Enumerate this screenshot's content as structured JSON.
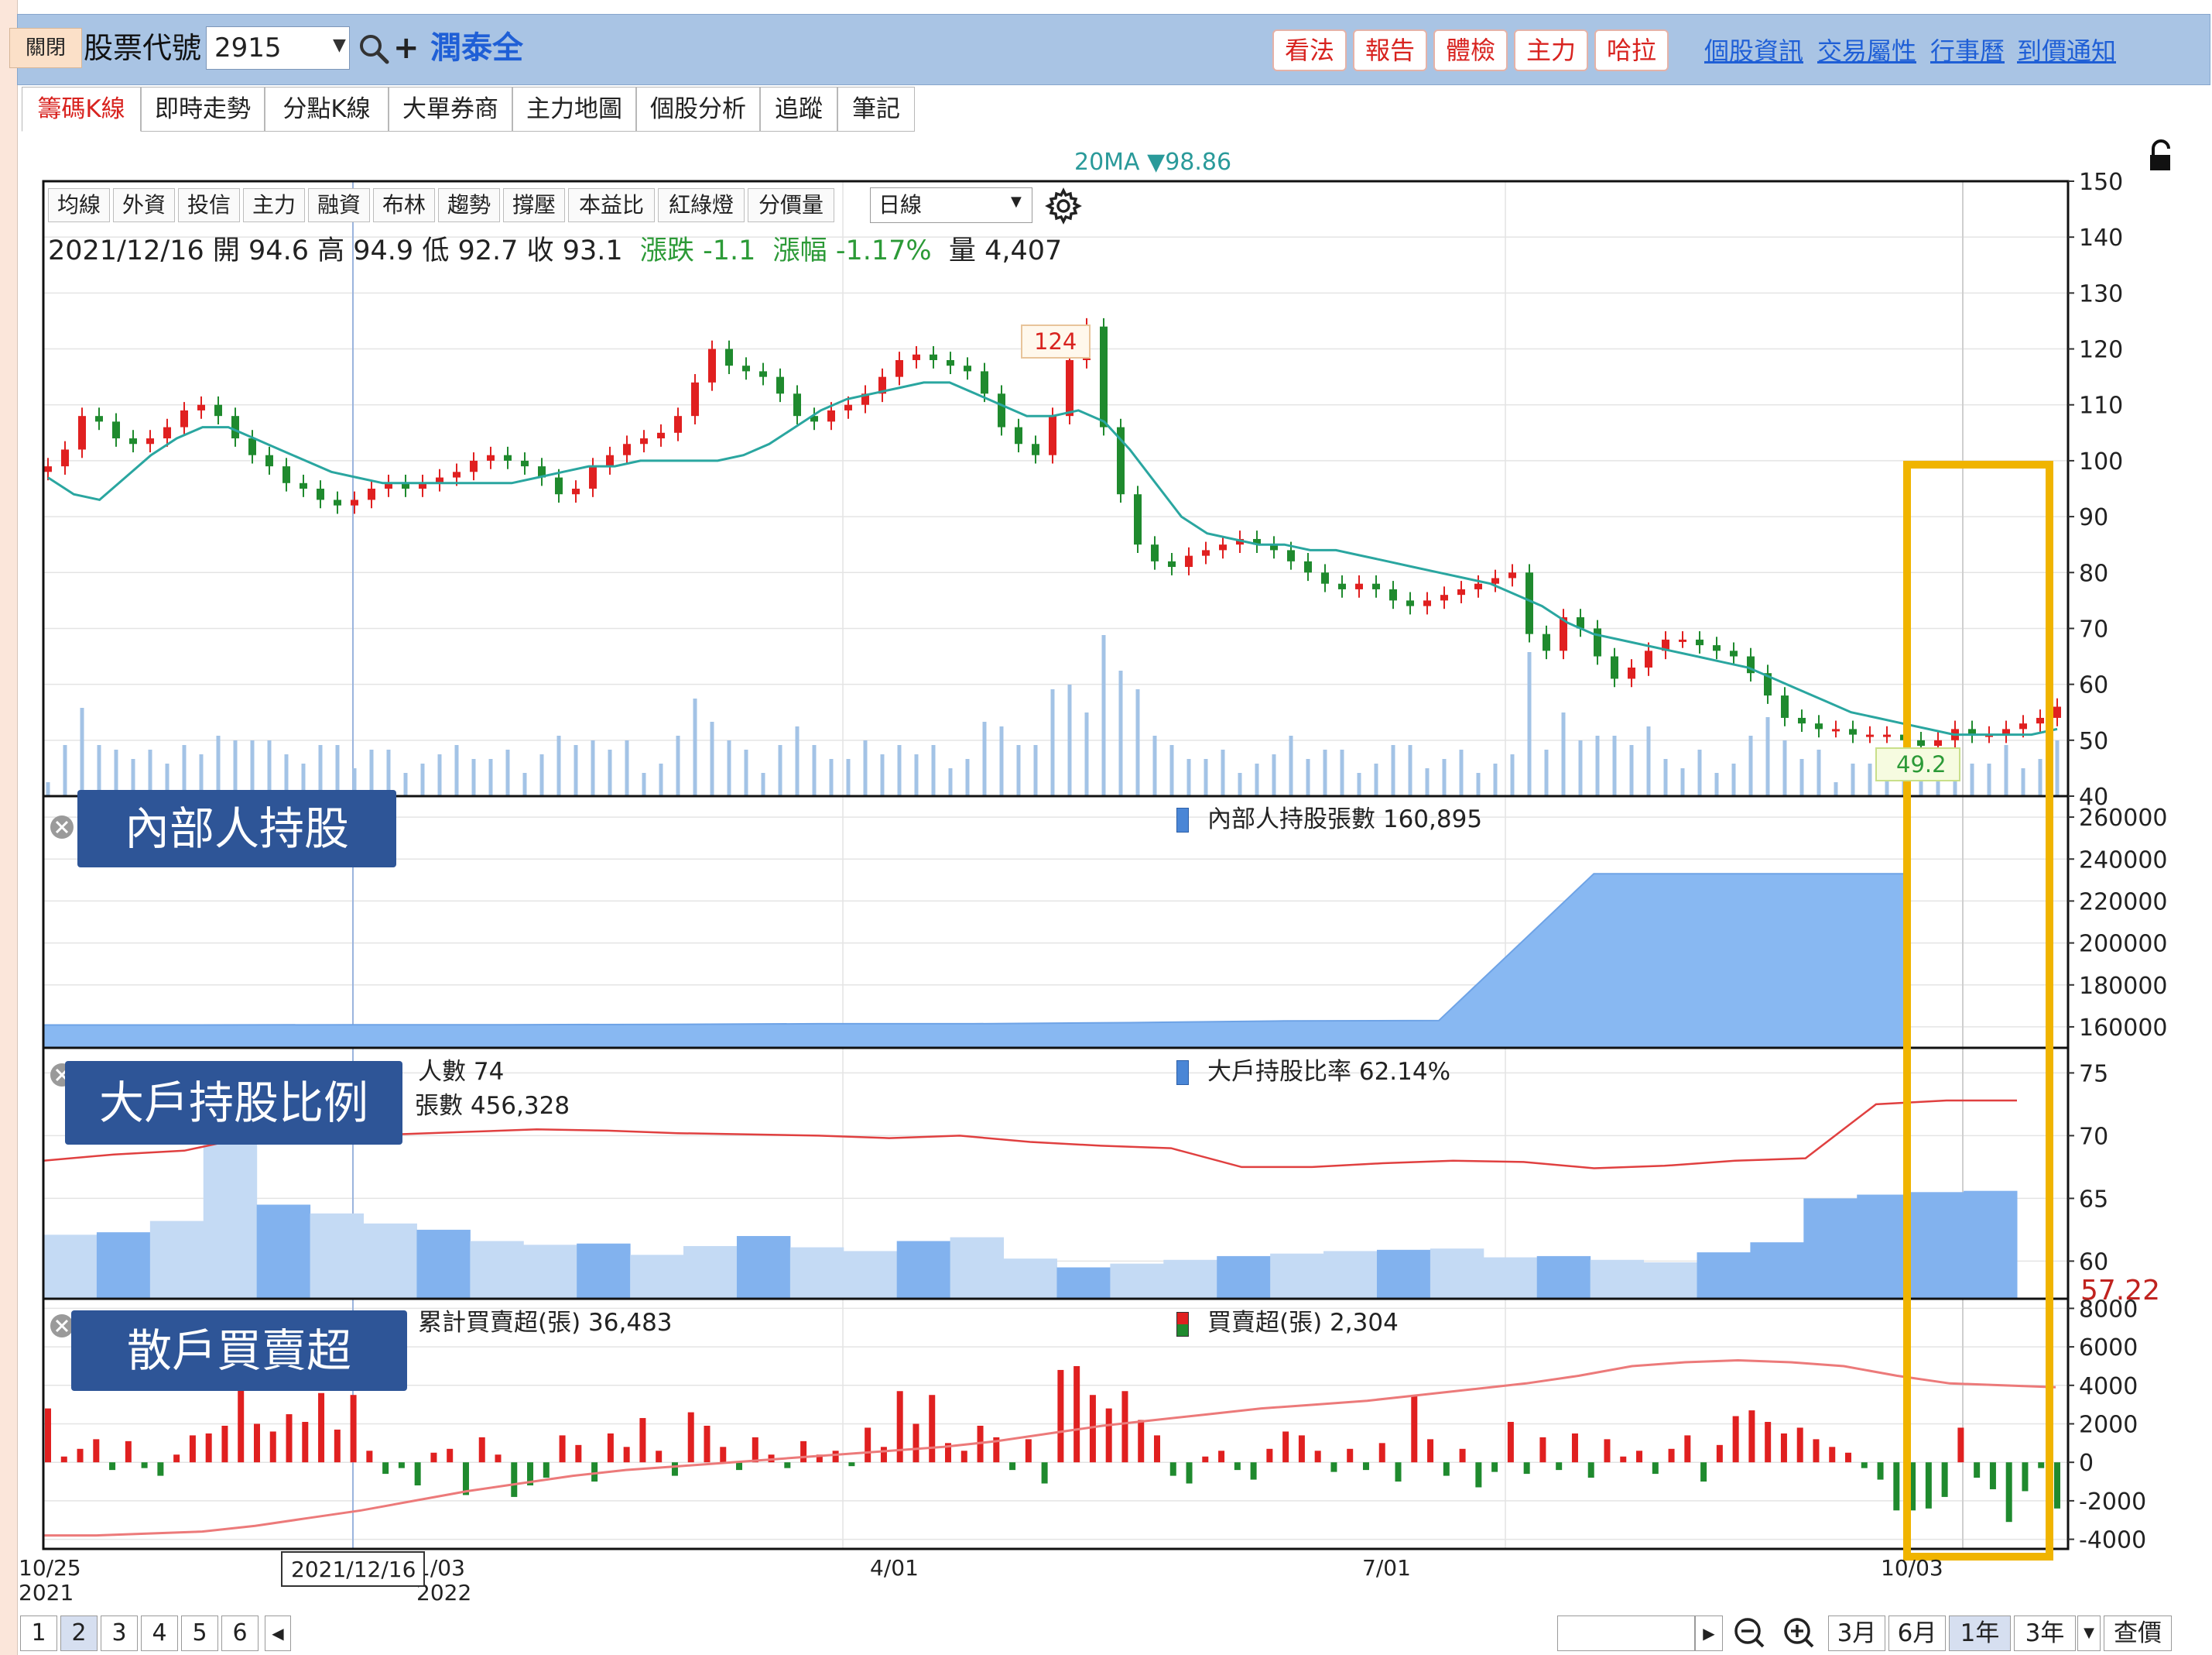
{
  "topbar": {
    "close_label": "關閉",
    "code_label": "股票代號",
    "code_value": "2915",
    "stock_name": "潤泰全",
    "action_buttons": [
      "看法",
      "報告",
      "體檢",
      "主力",
      "哈拉"
    ],
    "links": [
      "個股資訊",
      "交易屬性",
      "行事曆",
      "到價通知"
    ]
  },
  "tabs": [
    "籌碼K線",
    "即時走勢",
    "分點K線",
    "大單券商",
    "主力地圖",
    "個股分析",
    "追蹤",
    "筆記"
  ],
  "toolbar": {
    "buttons": [
      "均線",
      "外資",
      "投信",
      "主力",
      "融資",
      "布林",
      "趨勢",
      "撐壓",
      "本益比",
      "紅綠燈",
      "分價量"
    ],
    "period": "日線"
  },
  "info": {
    "date": "2021/12/16",
    "open_label": "開",
    "open": "94.6",
    "high_label": "高",
    "high": "94.9",
    "low_label": "低",
    "low": "92.7",
    "close_label": "收",
    "close": "93.1",
    "change_label": "漲跌",
    "change": "-1.1",
    "pct_label": "漲幅",
    "pct": "-1.17%",
    "vol_label": "量",
    "vol": "4,407"
  },
  "ma_legend": "20MA ▼98.86",
  "panels": {
    "insider": {
      "label": "內部人持股",
      "legend": "內部人持股張數 160,895"
    },
    "major": {
      "label": "大戶持股比例",
      "legend_count": "人數 74",
      "legend_shares": "張數 456,328",
      "legend_ratio": "大戶持股比率 62.14%",
      "last_value": "57.22"
    },
    "retail": {
      "label": "散戶買賣超",
      "legend_cum": "累計買賣超(張) 36,483",
      "legend_net": "買賣超(張) 2,304"
    }
  },
  "x_axis": {
    "ticks": [
      {
        "line1": "10/25",
        "line2": "2021"
      },
      {
        "line1": "1/03",
        "line2": "2022"
      },
      {
        "line1": "4/01",
        "line2": ""
      },
      {
        "line1": "7/01",
        "line2": ""
      },
      {
        "line1": "10/03",
        "line2": ""
      }
    ],
    "cursor_date": "2021/12/16"
  },
  "bottombar": {
    "pages": [
      "1",
      "2",
      "3",
      "4",
      "5",
      "6"
    ],
    "ranges": [
      "3月",
      "6月",
      "1年",
      "3年"
    ],
    "query_label": "查價"
  },
  "colors": {
    "up": "#e02020",
    "down": "#1f8a2e",
    "ma": "#2aa6a0",
    "volume": "#a3c3e6",
    "highlight": "#f0b400",
    "panel_label_bg": "#2e5597"
  },
  "chart_data": [
    {
      "type": "candlestick",
      "title": "",
      "x_range": [
        "2021/10/25",
        "2022/10/31"
      ],
      "ylim": [
        40,
        150
      ],
      "y_ticks": [
        150,
        140,
        130,
        120,
        110,
        100,
        90,
        80,
        70,
        60,
        50,
        40
      ],
      "annotations": [
        {
          "label": "124",
          "kind": "high"
        },
        {
          "label": "49.2",
          "kind": "low"
        }
      ],
      "series": [
        {
          "name": "close",
          "values": [
            99,
            102,
            108,
            107,
            104,
            103,
            104,
            106,
            109,
            110,
            108,
            104,
            101,
            99,
            96,
            95,
            93,
            92,
            93,
            95,
            96,
            95,
            96,
            97,
            98,
            100,
            101,
            100,
            99,
            97,
            94,
            95,
            99,
            101,
            103,
            104,
            105,
            108,
            114,
            120,
            117,
            116,
            115,
            112,
            108,
            107,
            109,
            110,
            112,
            115,
            118,
            119,
            118,
            117,
            116,
            112,
            106,
            103,
            101,
            108,
            118,
            124,
            106,
            94,
            85,
            82,
            81,
            83,
            84,
            85,
            86,
            85,
            84,
            82,
            80,
            78,
            77,
            78,
            77,
            75,
            74,
            75,
            76,
            77,
            78,
            79,
            80,
            69,
            66,
            72,
            70,
            65,
            61,
            63,
            66,
            68,
            68,
            67,
            66,
            65,
            62,
            58,
            54,
            53,
            52,
            52,
            51,
            51,
            51,
            50,
            49,
            50,
            52,
            51,
            51,
            52,
            53,
            54,
            56
          ]
        },
        {
          "name": "20MA",
          "values": [
            97,
            94,
            93,
            97,
            101,
            104,
            106,
            106,
            104,
            102,
            100,
            98,
            97,
            96,
            96,
            96,
            96,
            96,
            96,
            97,
            98,
            99,
            99,
            100,
            100,
            100,
            100,
            101,
            103,
            106,
            109,
            111,
            112,
            113,
            114,
            114,
            112,
            110,
            108,
            108,
            109,
            107,
            102,
            96,
            90,
            87,
            86,
            85,
            85,
            84,
            84,
            83,
            82,
            81,
            80,
            79,
            78,
            76,
            74,
            71,
            69,
            68,
            67,
            66,
            65,
            64,
            63,
            61,
            59,
            57,
            55,
            54,
            53,
            52,
            51,
            51,
            51,
            51,
            52
          ]
        }
      ]
    },
    {
      "type": "area",
      "title": "內部人持股",
      "ylim": [
        150000,
        270000
      ],
      "y_ticks": [
        260000,
        240000,
        220000,
        200000,
        180000,
        160000
      ],
      "series": [
        {
          "name": "內部人持股張數",
          "values": [
            160895,
            160895,
            161000,
            161000,
            161200,
            161500,
            161500,
            162000,
            162800,
            163000,
            233000,
            233000,
            233000
          ]
        }
      ]
    },
    {
      "type": "bar-line",
      "title": "大戶持股比例",
      "ylim": [
        57,
        77
      ],
      "y_ticks": [
        75,
        70,
        65,
        60
      ],
      "series": [
        {
          "name": "大戶持股比率",
          "values": [
            62.1,
            62.3,
            63.2,
            73,
            64.5,
            63.8,
            63,
            62.5,
            61.6,
            61.3,
            61.4,
            60.5,
            61.2,
            62,
            61.1,
            60.8,
            61.6,
            61.9,
            60.2,
            59.5,
            59.8,
            60.1,
            60.4,
            60.6,
            60.8,
            60.9,
            61.0,
            60.3,
            60.4,
            60.1,
            59.9,
            60.7,
            61.5,
            65,
            65.3,
            65.5,
            65.6
          ]
        },
        {
          "name": "人數",
          "values": [
            68,
            68.5,
            68.8,
            70,
            70.2,
            70.1,
            70.3,
            70.5,
            70.4,
            70.2,
            70.1,
            70.0,
            69.8,
            70.0,
            69.5,
            69.2,
            69.0,
            67.5,
            67.5,
            67.8,
            68.0,
            67.9,
            67.4,
            67.6,
            68.0,
            68.2,
            72.5,
            72.8,
            72.8
          ]
        }
      ]
    },
    {
      "type": "bar-line",
      "title": "散戶買賣超",
      "ylim": [
        -4500,
        8500
      ],
      "y_ticks": [
        8000,
        6000,
        4000,
        2000,
        0,
        -2000,
        -4000
      ],
      "series": [
        {
          "name": "買賣超(張)",
          "values": [
            2800,
            300,
            700,
            1200,
            -400,
            1100,
            -300,
            -700,
            400,
            1400,
            1500,
            1900,
            3800,
            2000,
            1600,
            2500,
            2100,
            3600,
            1700,
            3500,
            600,
            -600,
            -300,
            -1200,
            500,
            700,
            -1700,
            1300,
            400,
            -1800,
            -1200,
            -800,
            1400,
            900,
            -1000,
            1500,
            800,
            2300,
            600,
            -700,
            2600,
            1900,
            800,
            -400,
            1300,
            400,
            -300,
            1100,
            400,
            600,
            -200,
            1800,
            800,
            3700,
            2000,
            3500,
            1000,
            600,
            1900,
            1300,
            -400,
            1200,
            -1100,
            4800,
            5000,
            3500,
            2800,
            3700,
            2200,
            1400,
            -700,
            -1100,
            300,
            600,
            -400,
            -900,
            700,
            1600,
            1400,
            600,
            -500,
            700,
            -400,
            1000,
            -1000,
            3500,
            1200,
            -700,
            700,
            -1300,
            -500,
            2100,
            -600,
            1300,
            -400,
            1500,
            -800,
            1200,
            300,
            600,
            -600,
            700,
            1400,
            -1000,
            900,
            2400,
            2700,
            2100,
            1500,
            1800,
            1200,
            800,
            500,
            -300,
            -900,
            -2500,
            -2500,
            -2400,
            -1800,
            1800,
            -800,
            -1400,
            -3100,
            -1500,
            -300,
            -2400
          ]
        },
        {
          "name": "累計買賣超(張)",
          "values": [
            -3800,
            -3800,
            -3700,
            -3600,
            -3300,
            -2900,
            -2500,
            -2000,
            -1500,
            -1100,
            -700,
            -400,
            -200,
            0,
            200,
            400,
            600,
            800,
            1100,
            1500,
            1900,
            2200,
            2500,
            2800,
            3000,
            3200,
            3500,
            3800,
            4100,
            4500,
            5000,
            5200,
            5300,
            5200,
            5000,
            4500,
            4100,
            4000,
            3900
          ]
        }
      ]
    }
  ]
}
